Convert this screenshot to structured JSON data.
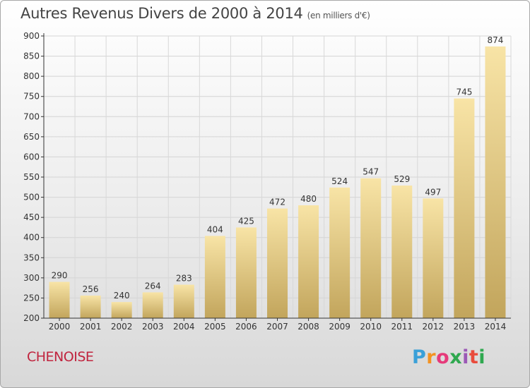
{
  "title": "Autres Revenus Divers de 2000 à 2014",
  "title_unit": "(en milliers d'€)",
  "town": "CHENOISE",
  "logo": "Proxiti",
  "colors": {
    "bar_top": "#f7e0a0",
    "bar_bottom": "#c4a860",
    "town": "#c0243e",
    "axis": "#333333"
  },
  "chart_data": {
    "type": "bar",
    "title": "Autres Revenus Divers de 2000 à 2014",
    "subtitle": "(en milliers d'€)",
    "xlabel": "",
    "ylabel": "",
    "categories": [
      "2000",
      "2001",
      "2002",
      "2003",
      "2004",
      "2005",
      "2006",
      "2007",
      "2008",
      "2009",
      "2010",
      "2011",
      "2012",
      "2013",
      "2014"
    ],
    "values": [
      290,
      256,
      240,
      264,
      283,
      404,
      425,
      472,
      480,
      524,
      547,
      529,
      497,
      745,
      874
    ],
    "ylim": [
      200,
      900
    ],
    "yticks": [
      200,
      250,
      300,
      350,
      400,
      450,
      500,
      550,
      600,
      650,
      700,
      750,
      800,
      850,
      900
    ],
    "grid": true,
    "data_labels": true
  }
}
